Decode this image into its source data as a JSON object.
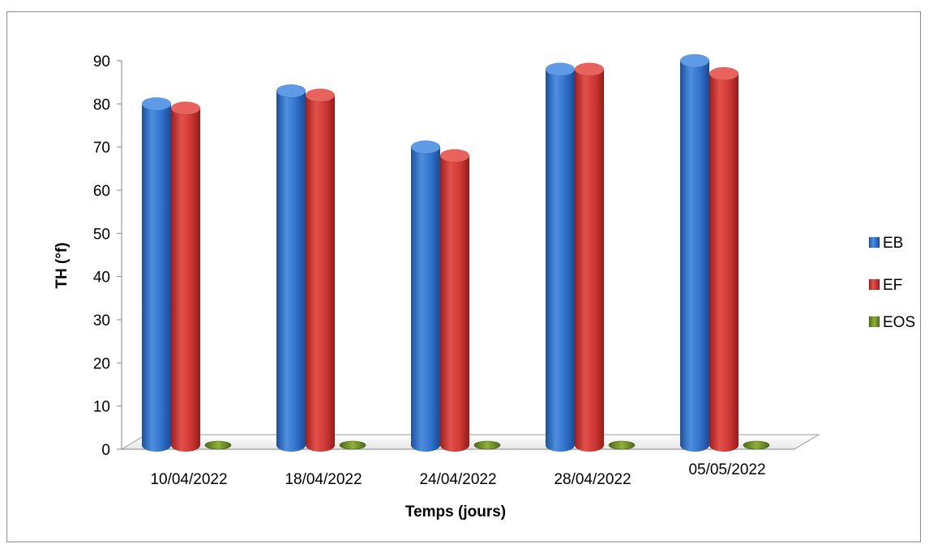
{
  "chart_data": {
    "type": "bar",
    "title": "",
    "xlabel": "Temps (jours)",
    "ylabel": "TH (°f)",
    "categories": [
      "10/04/2022",
      "18/04/2022",
      "24/04/2022",
      "28/04/2022",
      "05/05/2022"
    ],
    "series": [
      {
        "name": "EB",
        "values": [
          80,
          83,
          70,
          88,
          90
        ],
        "color": "#2e6fc4"
      },
      {
        "name": "EF",
        "values": [
          79,
          82,
          68,
          88,
          87
        ],
        "color": "#c8312e"
      },
      {
        "name": "EOS",
        "values": [
          0,
          0,
          0,
          0,
          0
        ],
        "color": "#7a9a2c"
      }
    ],
    "ylim": [
      0,
      90
    ],
    "yticks": [
      "0",
      "10",
      "20",
      "30",
      "40",
      "50",
      "60",
      "70",
      "80",
      "90"
    ],
    "grid": false,
    "legend_position": "right"
  }
}
